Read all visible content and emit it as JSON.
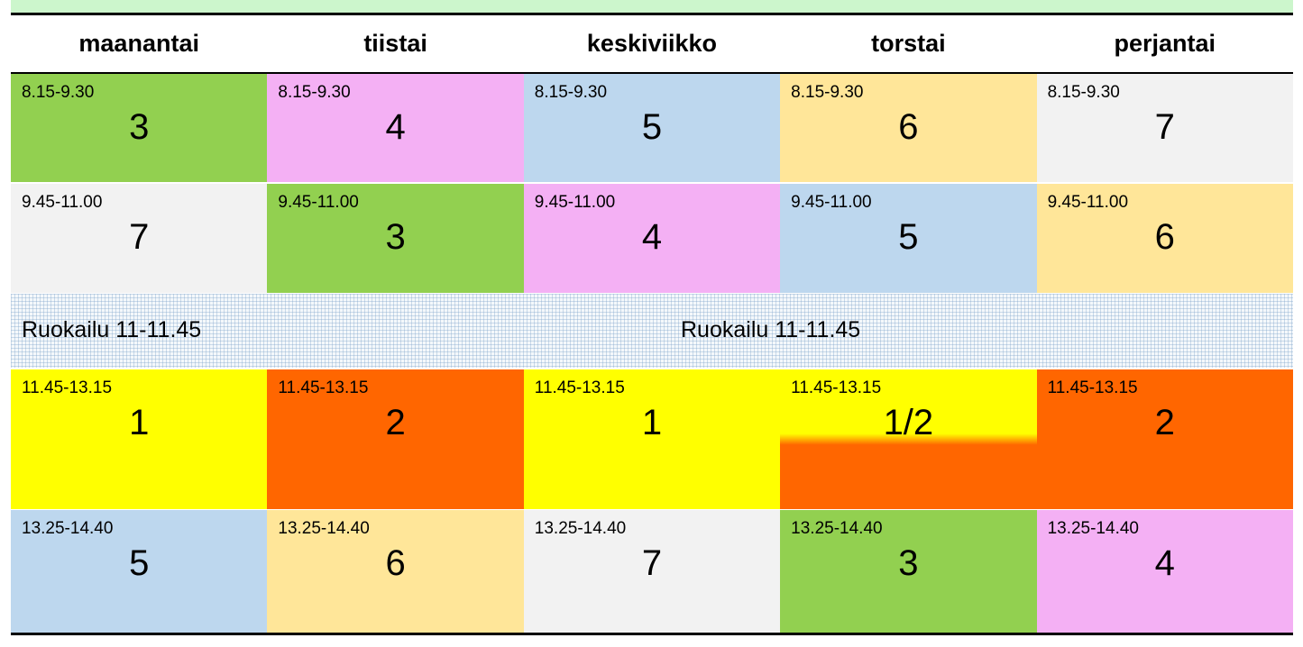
{
  "days": [
    "maanantai",
    "tiistai",
    "keskiviikko",
    "torstai",
    "perjantai"
  ],
  "rows": [
    {
      "cells": [
        {
          "time": "8.15-9.30",
          "value": "3",
          "color": "#92d050"
        },
        {
          "time": "8.15-9.30",
          "value": "4",
          "color": "#f4b0f4"
        },
        {
          "time": "8.15-9.30",
          "value": "5",
          "color": "#bdd7ee"
        },
        {
          "time": "8.15-9.30",
          "value": "6",
          "color": "#ffe699"
        },
        {
          "time": "8.15-9.30",
          "value": "7",
          "color": "#f2f2f2"
        }
      ]
    },
    {
      "cells": [
        {
          "time": "9.45-11.00",
          "value": "7",
          "color": "#f2f2f2"
        },
        {
          "time": "9.45-11.00",
          "value": "3",
          "color": "#92d050"
        },
        {
          "time": "9.45-11.00",
          "value": "4",
          "color": "#f4b0f4"
        },
        {
          "time": "9.45-11.00",
          "value": "5",
          "color": "#bdd7ee"
        },
        {
          "time": "9.45-11.00",
          "value": "6",
          "color": "#ffe699"
        }
      ]
    },
    {
      "cells": [
        {
          "time": "11.45-13.15",
          "value": "1",
          "color": "#ffff00"
        },
        {
          "time": "11.45-13.15",
          "value": "2",
          "color": "#ff6600"
        },
        {
          "time": "11.45-13.15",
          "value": "1",
          "color": "#ffff00"
        },
        {
          "time": "11.45-13.15",
          "value": "1/2",
          "color": "#ffff00/#ff6600"
        },
        {
          "time": "11.45-13.15",
          "value": "2",
          "color": "#ff6600"
        }
      ]
    },
    {
      "cells": [
        {
          "time": "13.25-14.40",
          "value": "5",
          "color": "#bdd7ee"
        },
        {
          "time": "13.25-14.40",
          "value": "6",
          "color": "#ffe699"
        },
        {
          "time": "13.25-14.40",
          "value": "7",
          "color": "#f2f2f2"
        },
        {
          "time": "13.25-14.40",
          "value": "3",
          "color": "#92d050"
        },
        {
          "time": "13.25-14.40",
          "value": "4",
          "color": "#f4b0f4"
        }
      ]
    }
  ],
  "lunch": {
    "left_label": "Ruokailu 11-11.45",
    "center_label": "Ruokailu 11-11.45"
  }
}
